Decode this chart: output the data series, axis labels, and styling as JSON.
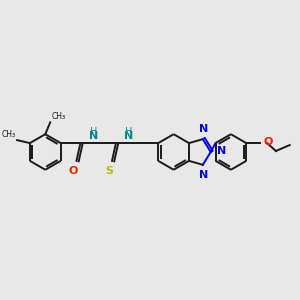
{
  "bg_color": "#e8e8e8",
  "bond_color": "#1a1a1a",
  "N_color": "#0000ee",
  "O_color": "#ee2200",
  "S_color": "#bbbb00",
  "NH_color": "#008888",
  "lw": 1.4,
  "figsize": [
    3.0,
    3.0
  ],
  "dpi": 100,
  "xlim": [
    0,
    300
  ],
  "ylim": [
    0,
    300
  ]
}
